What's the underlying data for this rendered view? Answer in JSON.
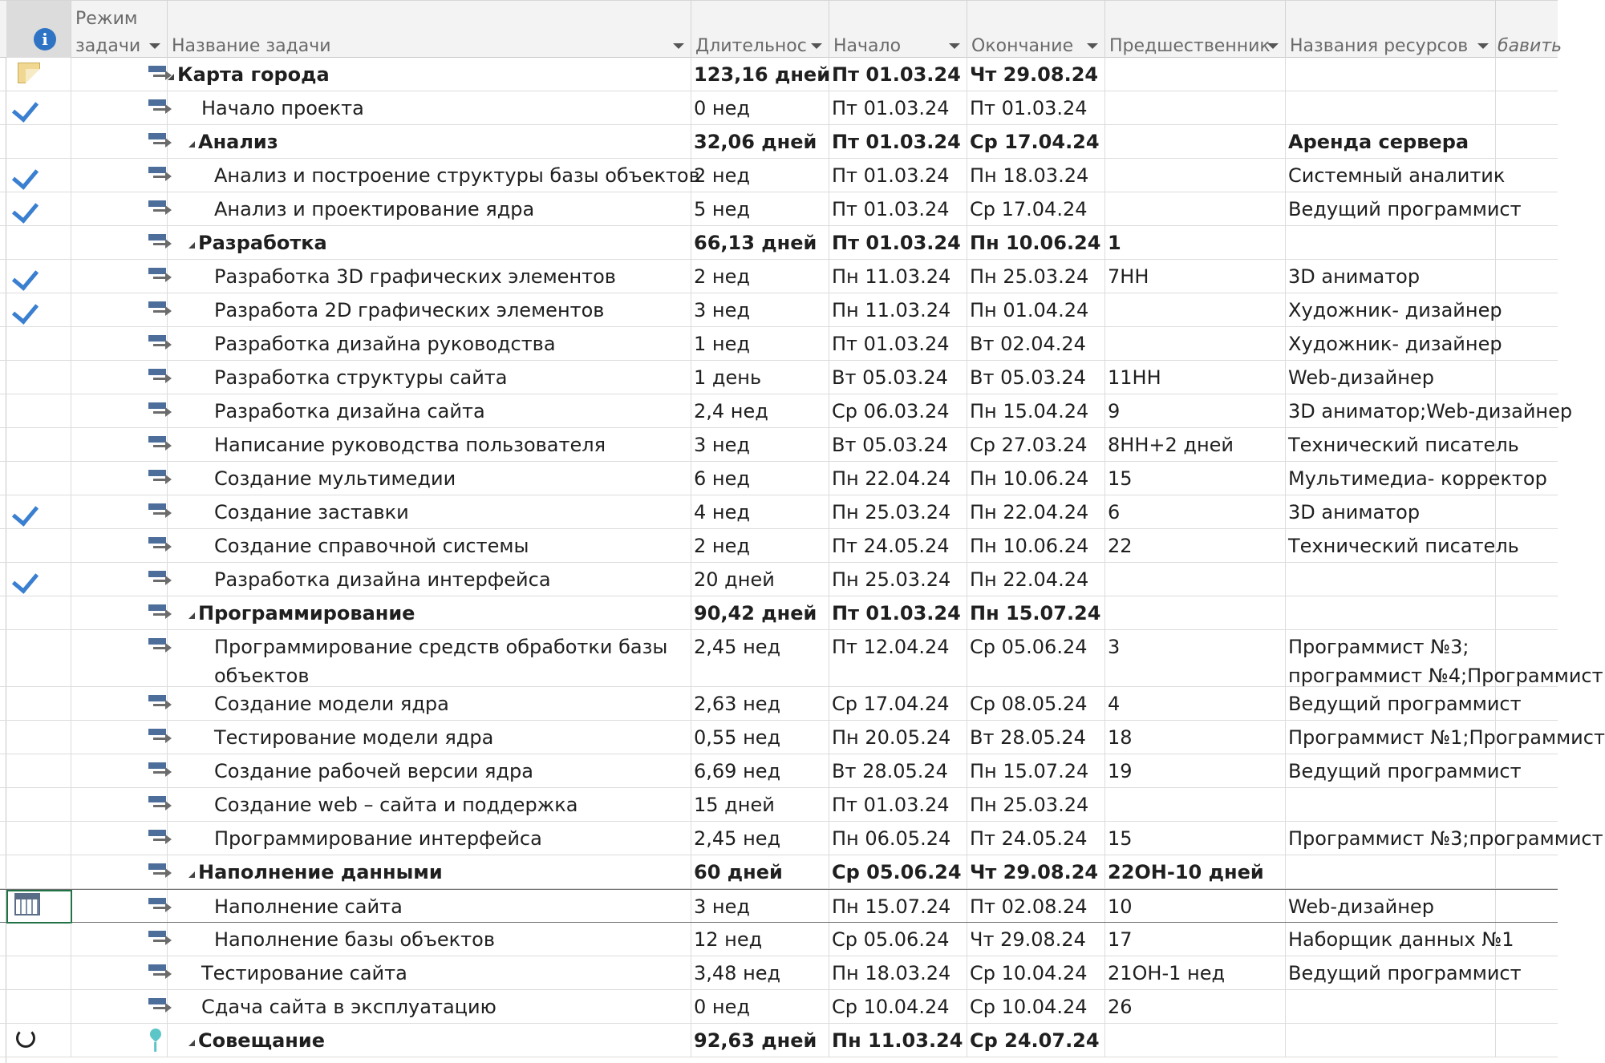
{
  "columns": {
    "info": "i",
    "mode_line1": "Режим",
    "mode_line2": "задачи",
    "name": "Название задачи",
    "duration": "Длительнос",
    "start": "Начало",
    "finish": "Окончание",
    "predecessors": "Предшественник",
    "resources": "Названия ресурсов",
    "add": "бавить"
  },
  "rows": [
    {
      "ind": "note",
      "mode": "auto",
      "level": 0,
      "summary": true,
      "name": "Карта города",
      "dur": "123,16 дней",
      "start": "Пт 01.03.24",
      "end": "Чт 29.08.24",
      "pred": "",
      "res": ""
    },
    {
      "ind": "check",
      "mode": "auto",
      "level": 1,
      "summary": false,
      "name": "Начало проекта",
      "dur": "0 нед",
      "start": "Пт 01.03.24",
      "end": "Пт 01.03.24",
      "pred": "",
      "res": ""
    },
    {
      "ind": "",
      "mode": "auto",
      "level": 1,
      "summary": true,
      "name": "Анализ",
      "dur": "32,06 дней",
      "start": "Пт 01.03.24",
      "end": "Ср 17.04.24",
      "pred": "",
      "res": "Аренда сервера"
    },
    {
      "ind": "check",
      "mode": "auto",
      "level": 2,
      "summary": false,
      "name": "Анализ и построение структуры базы объектов",
      "dur": "2 нед",
      "start": "Пт 01.03.24",
      "end": "Пн 18.03.24",
      "pred": "",
      "res": "Системный аналитик"
    },
    {
      "ind": "check",
      "mode": "auto",
      "level": 2,
      "summary": false,
      "name": "Анализ и проектирование ядра",
      "dur": "5 нед",
      "start": "Пт 01.03.24",
      "end": "Ср 17.04.24",
      "pred": "",
      "res": "Ведущий программист"
    },
    {
      "ind": "",
      "mode": "auto",
      "level": 1,
      "summary": true,
      "name": "Разработка",
      "dur": "66,13 дней",
      "start": "Пт 01.03.24",
      "end": "Пн 10.06.24",
      "pred": "1",
      "res": ""
    },
    {
      "ind": "check",
      "mode": "auto",
      "level": 2,
      "summary": false,
      "name": "Разработка 3D графических элементов",
      "dur": "2 нед",
      "start": "Пн 11.03.24",
      "end": "Пн 25.03.24",
      "pred": "7НН",
      "res": "3D аниматор"
    },
    {
      "ind": "check",
      "mode": "auto",
      "level": 2,
      "summary": false,
      "name": "Разработа 2D графических элементов",
      "dur": "3 нед",
      "start": "Пн 11.03.24",
      "end": "Пн 01.04.24",
      "pred": "",
      "res": "Художник- дизайнер"
    },
    {
      "ind": "",
      "mode": "auto",
      "level": 2,
      "summary": false,
      "name": "Разработка дизайна руководства",
      "dur": "1 нед",
      "start": "Пт 01.03.24",
      "end": "Вт 02.04.24",
      "pred": "",
      "res": "Художник- дизайнер"
    },
    {
      "ind": "",
      "mode": "auto",
      "level": 2,
      "summary": false,
      "name": "Разработка структуры сайта",
      "dur": "1 день",
      "start": "Вт 05.03.24",
      "end": "Вт 05.03.24",
      "pred": "11НН",
      "res": "Web-дизайнер"
    },
    {
      "ind": "",
      "mode": "auto",
      "level": 2,
      "summary": false,
      "name": "Разработка дизайна сайта",
      "dur": "2,4 нед",
      "start": "Ср 06.03.24",
      "end": "Пн 15.04.24",
      "pred": "9",
      "res": "3D аниматор;Web-дизайнер"
    },
    {
      "ind": "",
      "mode": "auto",
      "level": 2,
      "summary": false,
      "name": "Написание руководства пользователя",
      "dur": "3 нед",
      "start": "Вт 05.03.24",
      "end": "Ср 27.03.24",
      "pred": "8НН+2 дней",
      "res": "Технический писатель"
    },
    {
      "ind": "",
      "mode": "auto",
      "level": 2,
      "summary": false,
      "name": "Создание мультимедии",
      "dur": "6 нед",
      "start": "Пн 22.04.24",
      "end": "Пн 10.06.24",
      "pred": "15",
      "res": "Мультимедиа- корректор"
    },
    {
      "ind": "check",
      "mode": "auto",
      "level": 2,
      "summary": false,
      "name": "Создание заставки",
      "dur": "4 нед",
      "start": "Пн 25.03.24",
      "end": "Пн 22.04.24",
      "pred": "6",
      "res": "3D аниматор"
    },
    {
      "ind": "",
      "mode": "auto",
      "level": 2,
      "summary": false,
      "name": "Создание справочной системы",
      "dur": "2 нед",
      "start": "Пт 24.05.24",
      "end": "Пн 10.06.24",
      "pred": "22",
      "res": "Технический писатель"
    },
    {
      "ind": "check",
      "mode": "auto",
      "level": 2,
      "summary": false,
      "name": "Разработка дизайна интерфейса",
      "dur": "20 дней",
      "start": "Пн 25.03.24",
      "end": "Пн 22.04.24",
      "pred": "",
      "res": ""
    },
    {
      "ind": "",
      "mode": "auto",
      "level": 1,
      "summary": true,
      "name": "Программирование",
      "dur": "90,42 дней",
      "start": "Пт 01.03.24",
      "end": "Пн 15.07.24",
      "pred": "",
      "res": ""
    },
    {
      "ind": "",
      "mode": "auto",
      "level": 2,
      "summary": false,
      "tall": true,
      "name": "Программирование средств обработки базы объектов",
      "dur": "2,45 нед",
      "start": "Пт 12.04.24",
      "end": "Ср 05.06.24",
      "pred": "3",
      "res": "Программист №3;",
      "res2": "программист №4;Программист"
    },
    {
      "ind": "",
      "mode": "auto",
      "level": 2,
      "summary": false,
      "name": "Создание модели ядра",
      "dur": "2,63 нед",
      "start": "Ср 17.04.24",
      "end": "Ср 08.05.24",
      "pred": "4",
      "res": "Ведущий программист"
    },
    {
      "ind": "",
      "mode": "auto",
      "level": 2,
      "summary": false,
      "name": "Тестирование модели ядра",
      "dur": "0,55 нед",
      "start": "Пн 20.05.24",
      "end": "Вт 28.05.24",
      "pred": "18",
      "res": "Программист №1;Программист"
    },
    {
      "ind": "",
      "mode": "auto",
      "level": 2,
      "summary": false,
      "name": "Создание рабочей версии ядра",
      "dur": "6,69 нед",
      "start": "Вт 28.05.24",
      "end": "Пн 15.07.24",
      "pred": "19",
      "res": "Ведущий программист"
    },
    {
      "ind": "",
      "mode": "auto",
      "level": 2,
      "summary": false,
      "name": "Создание web – сайта и поддержка",
      "dur": "15 дней",
      "start": "Пт 01.03.24",
      "end": "Пн 25.03.24",
      "pred": "",
      "res": ""
    },
    {
      "ind": "",
      "mode": "auto",
      "level": 2,
      "summary": false,
      "name": "Программирование интерфейса",
      "dur": "2,45 нед",
      "start": "Пн 06.05.24",
      "end": "Пт 24.05.24",
      "pred": "15",
      "res": "Программист №3;программист"
    },
    {
      "ind": "",
      "mode": "auto",
      "level": 1,
      "summary": true,
      "name": "Наполнение данными",
      "dur": "60 дней",
      "start": "Ср 05.06.24",
      "end": "Чт 29.08.24",
      "pred": "22ОН-10 дней",
      "res": ""
    },
    {
      "ind": "calendar",
      "mode": "auto",
      "level": 2,
      "summary": false,
      "selected": true,
      "name": "Наполнение сайта",
      "dur": "3 нед",
      "start": "Пн 15.07.24",
      "end": "Пт 02.08.24",
      "pred": "10",
      "res": "Web-дизайнер"
    },
    {
      "ind": "",
      "mode": "auto",
      "level": 2,
      "summary": false,
      "name": "Наполнение базы объектов",
      "dur": "12 нед",
      "start": "Ср 05.06.24",
      "end": "Чт 29.08.24",
      "pred": "17",
      "res": "Наборщик данных №1"
    },
    {
      "ind": "",
      "mode": "auto",
      "level": 1,
      "summary": false,
      "name": "Тестирование сайта",
      "dur": "3,48 нед",
      "start": "Пн 18.03.24",
      "end": "Ср 10.04.24",
      "pred": "21ОН-1 нед",
      "res": "Ведущий программист"
    },
    {
      "ind": "",
      "mode": "auto",
      "level": 1,
      "summary": false,
      "name": "Сдача сайта в эксплуатацию",
      "dur": "0 нед",
      "start": "Ср 10.04.24",
      "end": "Ср 10.04.24",
      "pred": "26",
      "res": ""
    },
    {
      "ind": "recurring",
      "mode": "pin",
      "level": 1,
      "summary": true,
      "name": "Совещание",
      "dur": "92,63 дней",
      "start": "Пн 11.03.24",
      "end": "Ср 24.07.24",
      "pred": "",
      "res": ""
    }
  ]
}
